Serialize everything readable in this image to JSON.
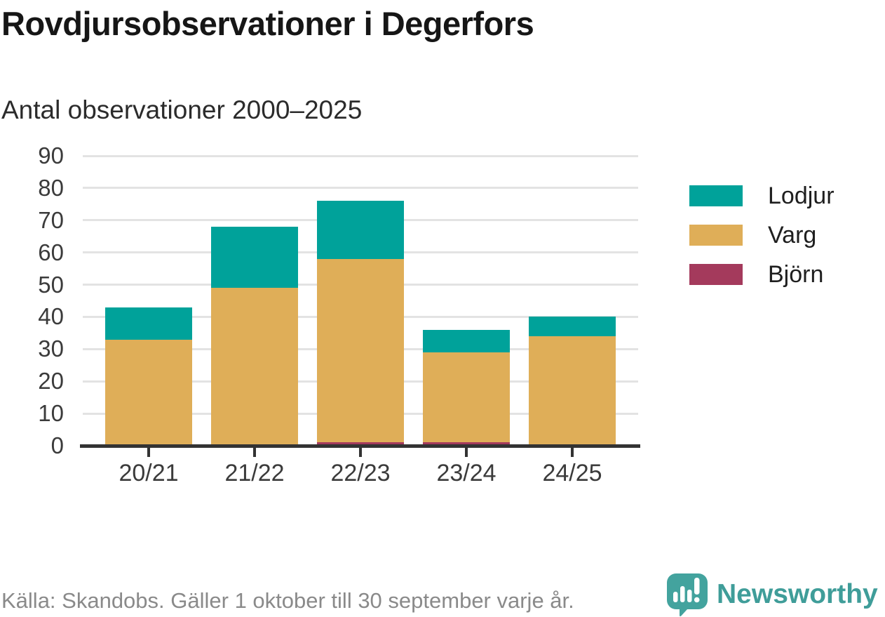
{
  "header": {
    "title": "Rovdjursobservationer i Degerfors",
    "subtitle": "Antal observationer 2000–2025"
  },
  "chart_data": {
    "type": "bar",
    "stacked": true,
    "title": "Rovdjursobservationer i Degerfors",
    "subtitle": "Antal observationer 2000–2025",
    "categories": [
      "20/21",
      "21/22",
      "22/23",
      "23/24",
      "24/25"
    ],
    "series": [
      {
        "name": "Björn",
        "color": "#a43a5c",
        "values": [
          0,
          0,
          1,
          1,
          0
        ]
      },
      {
        "name": "Varg",
        "color": "#dfae58",
        "values": [
          33,
          49,
          57,
          28,
          34
        ]
      },
      {
        "name": "Lodjur",
        "color": "#00a29a",
        "values": [
          10,
          19,
          18,
          7,
          6
        ]
      }
    ],
    "stack_totals": [
      43,
      68,
      76,
      36,
      40
    ],
    "xlabel": "",
    "ylabel": "",
    "ylim": [
      0,
      90
    ],
    "yticks": [
      0,
      10,
      20,
      30,
      40,
      50,
      60,
      70,
      80,
      90
    ],
    "grid": true,
    "legend_position": "right",
    "legend_order": [
      "Lodjur",
      "Varg",
      "Björn"
    ]
  },
  "footer": {
    "source": "Källa: Skandobs. Gäller 1 oktober till 30 september varje år.",
    "brand": "Newsworthy",
    "logo_icon": "speech-bubble-bar-chart-icon"
  },
  "colors": {
    "lodjur": "#00a29a",
    "varg": "#dfae58",
    "bjorn": "#a43a5c",
    "brand_teal": "#3f9d99",
    "logo_bubble": "#43a39e",
    "grid": "#e3e3e3",
    "axis": "#333333",
    "text_dark": "#161616",
    "text_axis": "#3b3b3b",
    "text_muted": "#8a8a8a"
  }
}
